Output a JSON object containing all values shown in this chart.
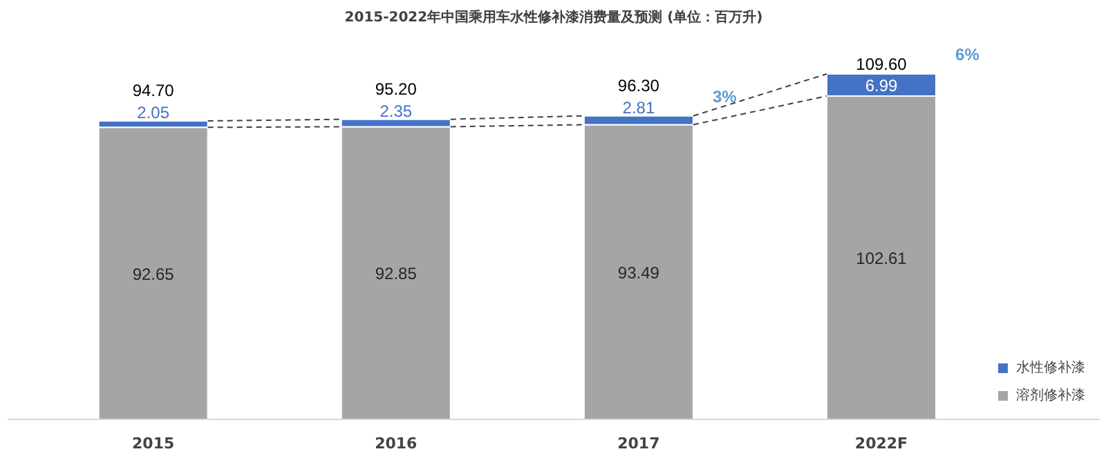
{
  "chart_data": {
    "type": "bar",
    "title": "2015-2022年中国乘用车水性修补漆消费量及预测 (单位：百万升)",
    "categories": [
      "2015",
      "2016",
      "2017",
      "2022F"
    ],
    "stacked": true,
    "data_labels": true,
    "legend": "bottom right",
    "series": [
      {
        "name": "溶剂修补漆",
        "color": "#a5a5a5",
        "values": [
          92.65,
          92.85,
          93.49,
          102.61
        ]
      },
      {
        "name": "水性修补漆",
        "color": "#4472c4",
        "values": [
          2.05,
          2.35,
          2.81,
          6.99
        ]
      }
    ],
    "totals": [
      "94.70",
      "95.20",
      "96.30",
      "109.60"
    ],
    "annotations": [
      "3%",
      "6%"
    ],
    "grid": false
  }
}
